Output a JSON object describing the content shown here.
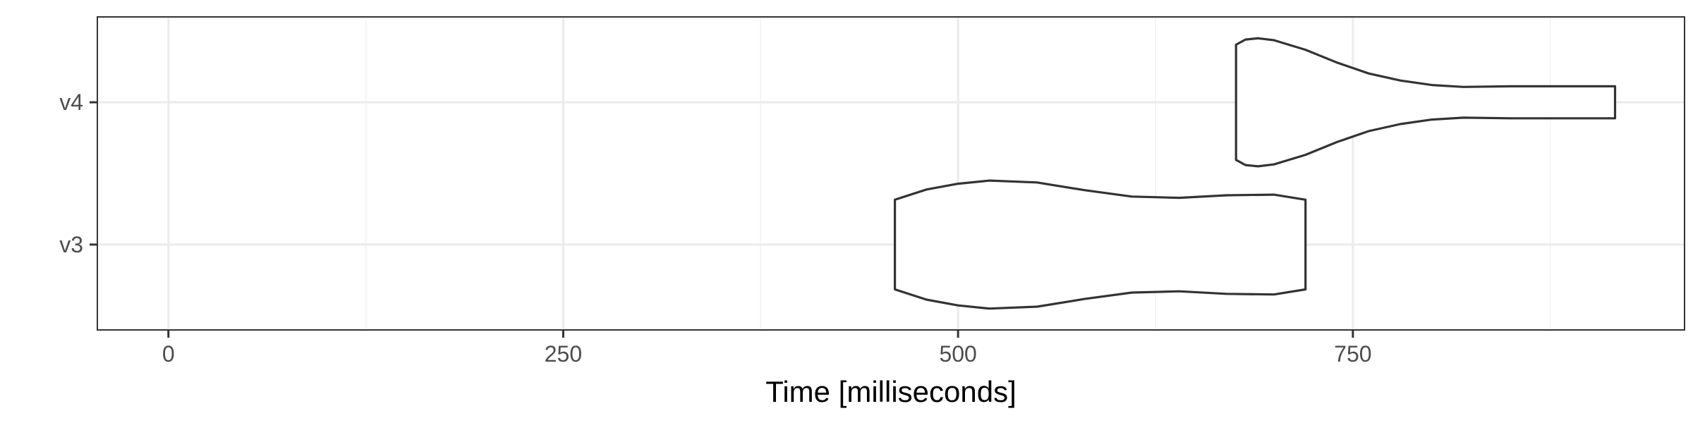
{
  "chart_data": {
    "type": "violin",
    "title": "",
    "xlabel": "Time [milliseconds]",
    "ylabel": "",
    "xlim": [
      -45,
      960
    ],
    "x_ticks": [
      0,
      250,
      500,
      750
    ],
    "x_tick_labels": [
      "0",
      "250",
      "500",
      "750"
    ],
    "x_minor_ticks": [
      125,
      375,
      625,
      875
    ],
    "categories": [
      "v3",
      "v4"
    ],
    "grid": true,
    "legend": "none",
    "colors": {
      "outline": "#333333",
      "fill": "#ffffff",
      "grid": "#ebebeb"
    },
    "series": [
      {
        "category": "v3",
        "min": 460,
        "max": 720,
        "density_profile": [
          [
            460,
            0.7
          ],
          [
            480,
            0.86
          ],
          [
            500,
            0.95
          ],
          [
            520,
            1.0
          ],
          [
            550,
            0.97
          ],
          [
            580,
            0.85
          ],
          [
            610,
            0.75
          ],
          [
            640,
            0.73
          ],
          [
            670,
            0.77
          ],
          [
            700,
            0.78
          ],
          [
            720,
            0.7
          ]
        ]
      },
      {
        "category": "v4",
        "min": 676,
        "max": 916,
        "density_profile": [
          [
            676,
            0.9
          ],
          [
            682,
            0.98
          ],
          [
            690,
            1.0
          ],
          [
            700,
            0.97
          ],
          [
            720,
            0.82
          ],
          [
            740,
            0.62
          ],
          [
            760,
            0.45
          ],
          [
            780,
            0.34
          ],
          [
            800,
            0.27
          ],
          [
            820,
            0.24
          ],
          [
            850,
            0.25
          ],
          [
            880,
            0.25
          ],
          [
            900,
            0.25
          ],
          [
            916,
            0.25
          ]
        ]
      }
    ]
  }
}
